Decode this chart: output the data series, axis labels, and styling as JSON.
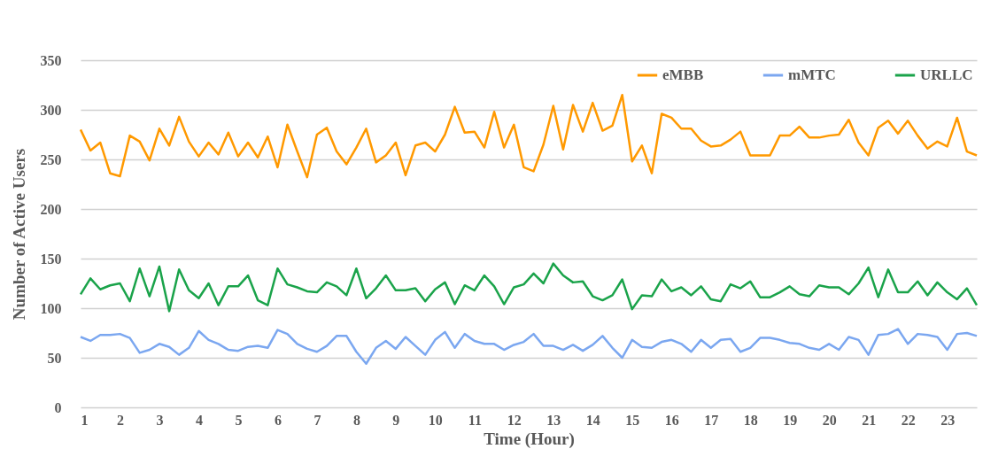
{
  "chart_data": {
    "type": "line",
    "xlabel": "Time (Hour)",
    "ylabel": "Number of Active Users",
    "x": [
      1,
      1.25,
      1.5,
      1.75,
      2,
      2.25,
      2.5,
      2.75,
      3,
      3.25,
      3.5,
      3.75,
      4,
      4.25,
      4.5,
      4.75,
      5,
      5.25,
      5.5,
      5.75,
      6,
      6.25,
      6.5,
      6.75,
      7,
      7.25,
      7.5,
      7.75,
      8,
      8.25,
      8.5,
      8.75,
      9,
      9.25,
      9.5,
      9.75,
      10,
      10.25,
      10.5,
      10.75,
      11,
      11.25,
      11.5,
      11.75,
      12,
      12.25,
      12.5,
      12.75,
      13,
      13.25,
      13.5,
      13.75,
      14,
      14.25,
      14.5,
      14.75,
      15,
      15.25,
      15.5,
      15.75,
      16,
      16.25,
      16.5,
      16.75,
      17,
      17.25,
      17.5,
      17.75,
      18,
      18.25,
      18.5,
      18.75,
      19,
      19.25,
      19.5,
      19.75,
      20,
      20.25,
      20.5,
      20.75,
      21,
      21.25,
      21.5,
      21.75,
      22,
      22.25,
      22.5,
      22.75,
      23,
      23.25,
      23.5,
      23.75
    ],
    "series": [
      {
        "name": "eMBB",
        "color": "#ff9900",
        "values": [
          280,
          259,
          267,
          236,
          233,
          274,
          268,
          249,
          281,
          264,
          293,
          268,
          253,
          267,
          255,
          277,
          253,
          267,
          252,
          273,
          242,
          285,
          258,
          232,
          275,
          282,
          258,
          245,
          262,
          281,
          247,
          254,
          267,
          234,
          264,
          267,
          258,
          275,
          303,
          277,
          278,
          262,
          298,
          262,
          285,
          242,
          238,
          265,
          304,
          260,
          305,
          278,
          307,
          279,
          284,
          315,
          248,
          264,
          236,
          296,
          292,
          281,
          281,
          269,
          263,
          264,
          270,
          278,
          254,
          254,
          254,
          274,
          274,
          283,
          272,
          272,
          274,
          275,
          290,
          267,
          254,
          282,
          289,
          276,
          289,
          274,
          261,
          268,
          263,
          292,
          258,
          254
        ]
      },
      {
        "name": "mMTC",
        "color": "#7ba7f0",
        "values": [
          71,
          67,
          73,
          73,
          74,
          70,
          55,
          58,
          64,
          61,
          53,
          60,
          77,
          68,
          64,
          58,
          57,
          61,
          62,
          60,
          78,
          74,
          64,
          59,
          56,
          62,
          72,
          72,
          56,
          44,
          60,
          67,
          59,
          71,
          62,
          53,
          68,
          76,
          60,
          74,
          67,
          64,
          64,
          58,
          63,
          66,
          74,
          62,
          62,
          58,
          63,
          57,
          63,
          72,
          60,
          50,
          68,
          61,
          60,
          66,
          68,
          64,
          56,
          68,
          60,
          68,
          69,
          56,
          60,
          70,
          70,
          68,
          65,
          64,
          60,
          58,
          64,
          58,
          71,
          68,
          53,
          73,
          74,
          79,
          64,
          74,
          73,
          71,
          58,
          74,
          75,
          72
        ]
      },
      {
        "name": "URLLC",
        "color": "#1aa34a",
        "values": [
          114,
          130,
          119,
          123,
          125,
          107,
          140,
          112,
          142,
          97,
          139,
          118,
          110,
          125,
          103,
          122,
          122,
          133,
          108,
          103,
          140,
          124,
          121,
          117,
          116,
          126,
          122,
          113,
          140,
          110,
          120,
          133,
          118,
          118,
          120,
          107,
          119,
          126,
          104,
          123,
          118,
          133,
          122,
          104,
          121,
          124,
          135,
          125,
          145,
          133,
          126,
          127,
          112,
          108,
          113,
          129,
          99,
          113,
          112,
          129,
          117,
          121,
          113,
          122,
          109,
          107,
          124,
          120,
          127,
          111,
          111,
          116,
          122,
          114,
          112,
          123,
          121,
          121,
          114,
          125,
          141,
          111,
          139,
          116,
          116,
          127,
          113,
          126,
          116,
          109,
          120,
          103
        ]
      }
    ],
    "xlim": [
      1,
      23.75
    ],
    "xticks": [
      1,
      2,
      3,
      4,
      5,
      6,
      7,
      8,
      9,
      10,
      11,
      12,
      13,
      14,
      15,
      16,
      17,
      18,
      19,
      20,
      21,
      22,
      23
    ],
    "ylim": [
      0,
      350
    ],
    "yticks": [
      0,
      50,
      100,
      150,
      200,
      250,
      300,
      350
    ],
    "grid": "y",
    "legend": "top right",
    "line_style": "solid",
    "marker": "none"
  }
}
